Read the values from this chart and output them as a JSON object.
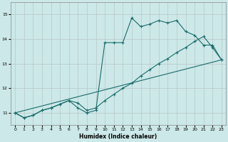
{
  "xlabel": "Humidex (Indice chaleur)",
  "bg_color": "#cce8e8",
  "grid_color": "#b8c8c8",
  "line_color": "#1a6b6b",
  "xlim": [
    -0.5,
    23.5
  ],
  "ylim": [
    10.5,
    15.5
  ],
  "yticks": [
    11,
    12,
    13,
    14,
    15
  ],
  "xticks": [
    0,
    1,
    2,
    3,
    4,
    5,
    6,
    7,
    8,
    9,
    10,
    11,
    12,
    13,
    14,
    15,
    16,
    17,
    18,
    19,
    20,
    21,
    22,
    23
  ],
  "series1_x": [
    0,
    1,
    2,
    3,
    4,
    5,
    6,
    7,
    8,
    9,
    10,
    11,
    12,
    13,
    14,
    15,
    16,
    17,
    18,
    19,
    20,
    21,
    22,
    23
  ],
  "series1_y": [
    11.0,
    10.8,
    10.9,
    11.1,
    11.2,
    11.35,
    11.5,
    11.4,
    11.1,
    11.2,
    11.5,
    11.75,
    12.0,
    12.2,
    12.5,
    12.75,
    13.0,
    13.2,
    13.45,
    13.65,
    13.9,
    14.1,
    13.65,
    13.15
  ],
  "series2_x": [
    0,
    1,
    2,
    3,
    4,
    5,
    6,
    7,
    8,
    9,
    10,
    11,
    12,
    13,
    14,
    15,
    16,
    17,
    18,
    19,
    20,
    21,
    22,
    23
  ],
  "series2_y": [
    11.0,
    10.8,
    10.9,
    11.1,
    11.2,
    11.35,
    11.5,
    11.2,
    11.0,
    11.1,
    13.85,
    13.85,
    13.85,
    14.85,
    14.5,
    14.6,
    14.75,
    14.65,
    14.75,
    14.3,
    14.15,
    13.75,
    13.75,
    13.15
  ],
  "series3_x": [
    0,
    23
  ],
  "series3_y": [
    11.0,
    13.15
  ]
}
